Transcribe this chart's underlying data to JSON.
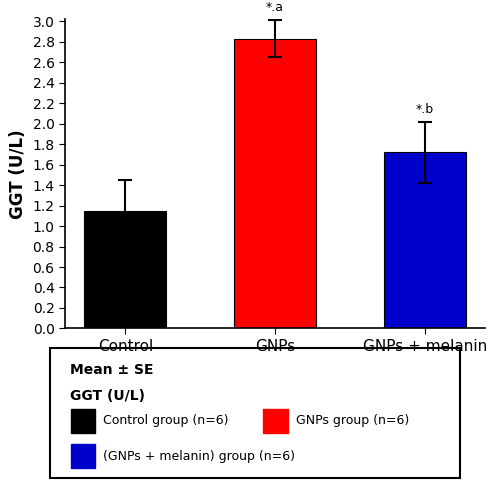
{
  "categories": [
    "Control",
    "GNPs",
    "GNPs + melanin"
  ],
  "values": [
    1.15,
    2.83,
    1.72
  ],
  "errors": [
    0.3,
    0.18,
    0.3
  ],
  "bar_colors": [
    "#000000",
    "#ff0000",
    "#0000cc"
  ],
  "ylabel": "GGT (U/L)",
  "ylim": [
    0.0,
    3.0
  ],
  "yticks": [
    0.0,
    0.2,
    0.4,
    0.6,
    0.8,
    1.0,
    1.2,
    1.4,
    1.6,
    1.8,
    2.0,
    2.2,
    2.4,
    2.6,
    2.8,
    3.0
  ],
  "annotations": [
    "",
    "*.a",
    "*.b"
  ],
  "legend_header1": "Mean ± SE",
  "legend_header2": "GGT (U/L)",
  "legend_labels": [
    "Control group (n=6)",
    "GNPs group (n=6)",
    "(GNPs + melanin) group (n=6)"
  ],
  "legend_colors": [
    "#000000",
    "#ff0000",
    "#0000cc"
  ],
  "bar_width": 0.55,
  "figsize": [
    5.0,
    4.83
  ],
  "dpi": 100
}
